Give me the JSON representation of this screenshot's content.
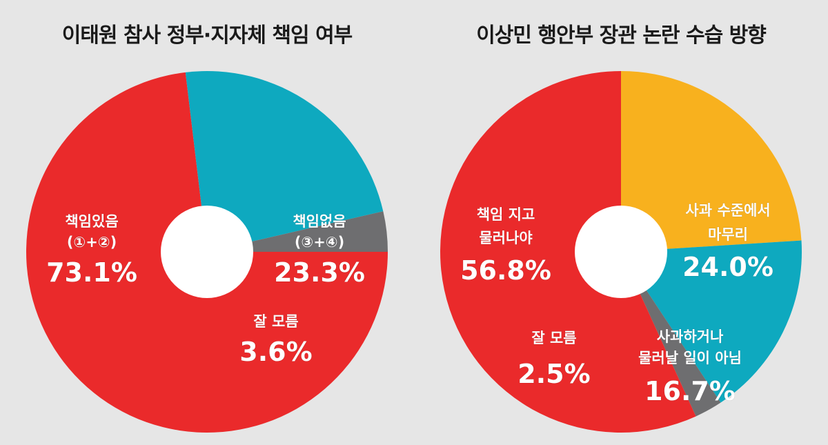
{
  "colors": {
    "background": "#e6e6e6",
    "red": "#ea2a2b",
    "teal": "#0ea9bf",
    "gray": "#6e6e70",
    "orange": "#f8b11e",
    "hole": "#ffffff"
  },
  "chart_data": [
    {
      "type": "pie",
      "donut": true,
      "title": "이태원 참사 정부·지자체 책임 여부",
      "slices": [
        {
          "label": "책임있음",
          "sub": "(①+②)",
          "value": 73.1,
          "value_label": "73.1%",
          "color": "#ea2a2b"
        },
        {
          "label": "책임없음",
          "sub": "(③+④)",
          "value": 23.3,
          "value_label": "23.3%",
          "color": "#0ea9bf"
        },
        {
          "label": "잘 모름",
          "sub": "",
          "value": 3.6,
          "value_label": "3.6%",
          "color": "#6e6e70"
        }
      ]
    },
    {
      "type": "pie",
      "donut": true,
      "title": "이상민 행안부 장관 논란 수습 방향",
      "slices": [
        {
          "label": "사과 수준에서",
          "sub": "마무리",
          "value": 24.0,
          "value_label": "24.0%",
          "color": "#f8b11e"
        },
        {
          "label": "사과하거나",
          "sub": "물러날 일이 아님",
          "value": 16.7,
          "value_label": "16.7%",
          "color": "#0ea9bf"
        },
        {
          "label": "잘 모름",
          "sub": "",
          "value": 2.5,
          "value_label": "2.5%",
          "color": "#6e6e70"
        },
        {
          "label": "책임 지고",
          "sub": "물러나야",
          "value": 56.8,
          "value_label": "56.8%",
          "color": "#ea2a2b"
        }
      ]
    }
  ]
}
